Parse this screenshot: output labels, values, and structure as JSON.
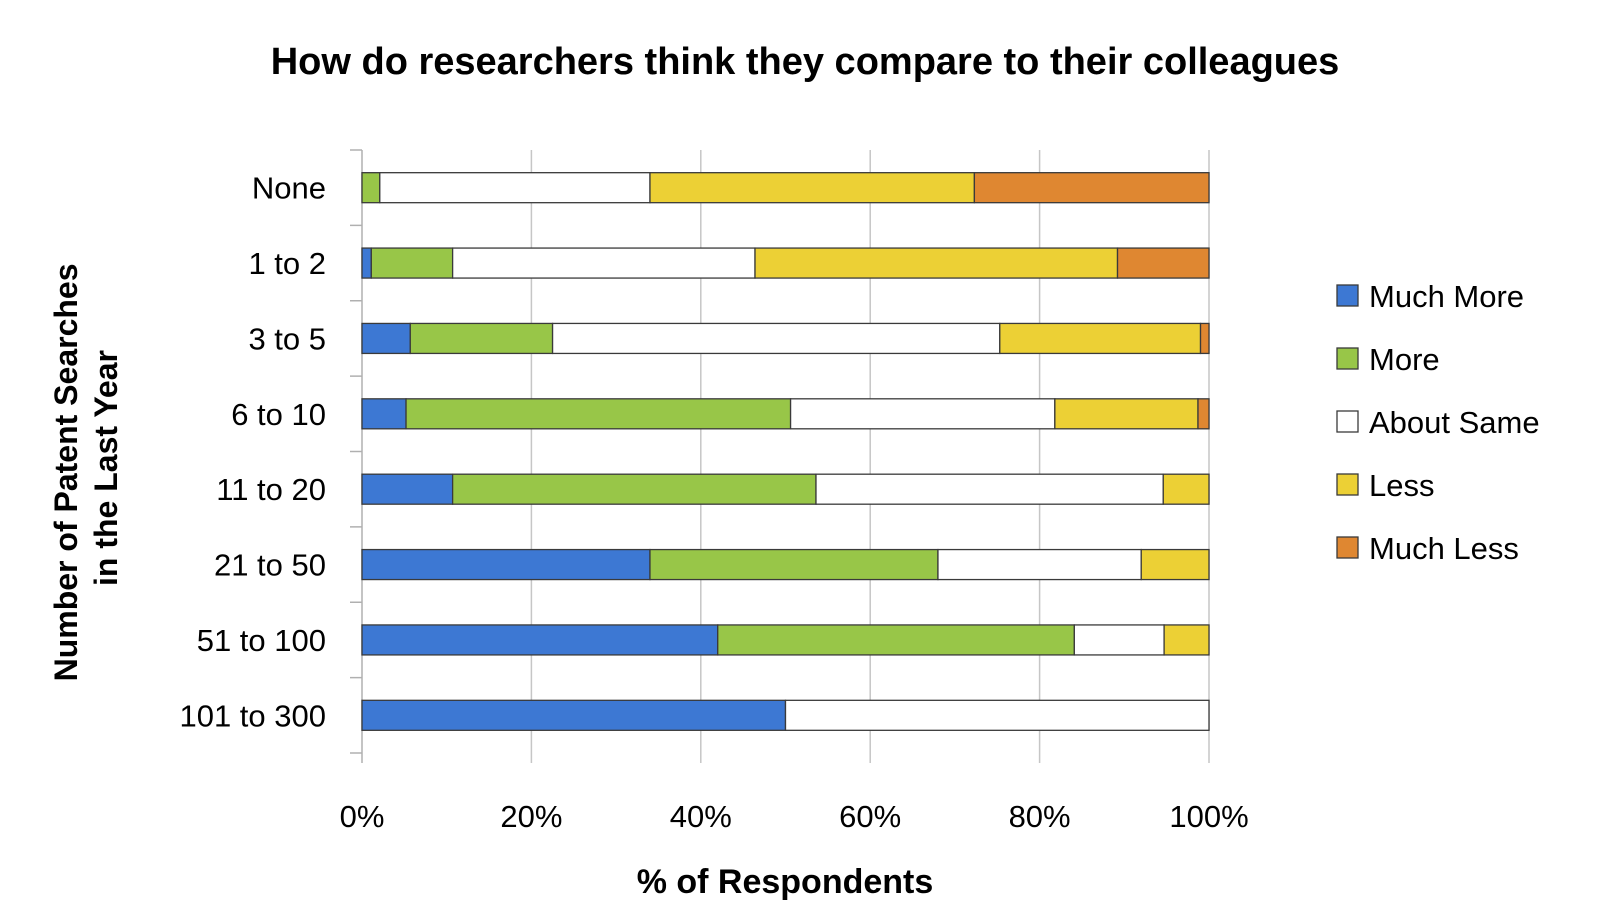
{
  "chart_data": {
    "type": "bar",
    "orientation": "horizontal",
    "stacked": true,
    "percent_stacked": true,
    "title": "How do researchers think they compare to their colleagues",
    "xlabel": "% of Respondents",
    "ylabel": "Number of Patent Searches in the Last Year",
    "ylabel_lines": [
      "Number of Patent Searches",
      "in the Last Year"
    ],
    "categories": [
      "None",
      "1 to 2",
      "3 to 5",
      "6 to 10",
      "11 to 20",
      "21 to 50",
      "51 to 100",
      "101 to 300"
    ],
    "xlim": [
      0,
      100
    ],
    "xticks": [
      0,
      20,
      40,
      60,
      80,
      100
    ],
    "xtick_labels": [
      "0%",
      "20%",
      "40%",
      "60%",
      "80%",
      "100%"
    ],
    "grid": "vertical",
    "legend_position": "right",
    "series": [
      {
        "name": "Much More",
        "color": "#3d78d3",
        "values": [
          0,
          1.1,
          5.7,
          5.2,
          10.7,
          34,
          42,
          50
        ]
      },
      {
        "name": "More",
        "color": "#98c648",
        "values": [
          2.1,
          9.6,
          16.8,
          45.4,
          42.9,
          34,
          42.1,
          0
        ]
      },
      {
        "name": "About Same",
        "color": "#ffffff",
        "values": [
          31.9,
          35.7,
          52.8,
          31.2,
          41,
          24,
          10.6,
          50
        ]
      },
      {
        "name": "Less",
        "color": "#ecd035",
        "values": [
          38.3,
          42.8,
          23.7,
          16.9,
          5.4,
          8,
          5.3,
          0
        ]
      },
      {
        "name": "Much Less",
        "color": "#df8731",
        "values": [
          27.7,
          10.8,
          1,
          1.3,
          0,
          0,
          0,
          0
        ]
      }
    ]
  }
}
